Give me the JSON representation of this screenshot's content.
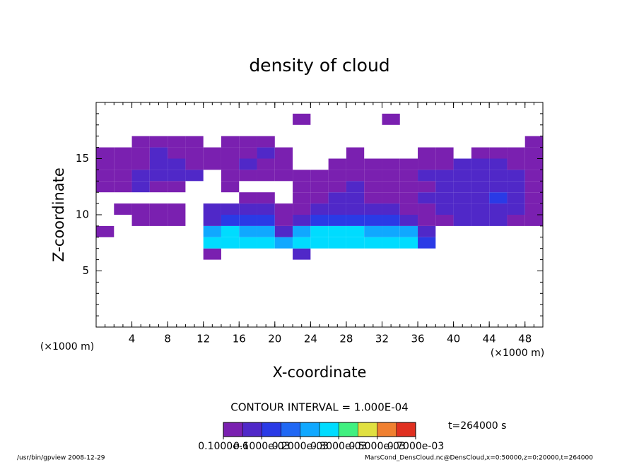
{
  "chart_data": {
    "type": "contour",
    "title": "density of cloud",
    "xlabel": "X-coordinate",
    "ylabel": "Z-coordinate",
    "x_unit_left": "(×1000 m)",
    "x_unit_right": "(×1000 m)",
    "contour_interval": "CONTOUR INTERVAL = 1.000E-04",
    "time_label": "t=264000 s",
    "footer_left": "/usr/bin/gpview  2008-12-29",
    "footer_right": "MarsCond_DensCloud.nc@DensCloud,x=0:50000,z=0:20000,t=264000",
    "xlim": [
      0,
      50
    ],
    "ylim": [
      0,
      20
    ],
    "xticks": [
      4,
      8,
      12,
      16,
      20,
      24,
      28,
      32,
      36,
      40,
      44,
      48
    ],
    "yticks": [
      5,
      10,
      15
    ],
    "minor_step": 1,
    "cell_width": 2,
    "cell_height": 1,
    "x": [
      1,
      3,
      5,
      7,
      9,
      11,
      13,
      15,
      17,
      19,
      21,
      23,
      25,
      27,
      29,
      31,
      33,
      35,
      37,
      39,
      41,
      43,
      45,
      47,
      49
    ],
    "z": [
      6.5,
      7.5,
      8.5,
      9.5,
      10.5,
      11.5,
      12.5,
      13.5,
      14.5,
      15.5,
      16.5,
      17.5,
      18.5
    ],
    "values": [
      [
        null,
        null,
        null,
        null,
        null,
        null,
        2e-05,
        null,
        null,
        null,
        null,
        7e-05,
        null,
        null,
        null,
        null,
        null,
        null,
        null,
        null,
        null,
        null,
        null,
        null,
        null
      ],
      [
        null,
        null,
        null,
        null,
        null,
        null,
        0.00028,
        0.00028,
        0.00028,
        0.00028,
        0.00022,
        0.00028,
        0.00028,
        0.00028,
        0.00028,
        0.00028,
        0.00028,
        0.00028,
        0.00012,
        null,
        null,
        null,
        null,
        null,
        null
      ],
      [
        2e-05,
        null,
        null,
        null,
        null,
        null,
        0.00022,
        0.00028,
        0.00022,
        0.00022,
        7e-05,
        0.00022,
        0.00028,
        0.00028,
        0.00028,
        0.00022,
        0.00022,
        0.00022,
        7e-05,
        null,
        null,
        null,
        null,
        null,
        null
      ],
      [
        null,
        null,
        2e-05,
        2e-05,
        2e-05,
        null,
        7e-05,
        0.00012,
        0.00012,
        0.00012,
        2e-05,
        7e-05,
        0.00012,
        0.00012,
        0.00012,
        0.00012,
        0.00012,
        7e-05,
        2e-05,
        2e-05,
        7e-05,
        7e-05,
        7e-05,
        2e-05,
        2e-05
      ],
      [
        null,
        2e-05,
        2e-05,
        2e-05,
        2e-05,
        null,
        7e-05,
        7e-05,
        7e-05,
        7e-05,
        2e-05,
        2e-05,
        7e-05,
        7e-05,
        7e-05,
        7e-05,
        7e-05,
        2e-05,
        2e-05,
        7e-05,
        7e-05,
        7e-05,
        7e-05,
        7e-05,
        2e-05
      ],
      [
        null,
        null,
        null,
        null,
        null,
        null,
        null,
        null,
        2e-05,
        2e-05,
        null,
        2e-05,
        2e-05,
        7e-05,
        7e-05,
        2e-05,
        2e-05,
        2e-05,
        7e-05,
        7e-05,
        7e-05,
        7e-05,
        0.00012,
        7e-05,
        2e-05
      ],
      [
        2e-05,
        2e-05,
        7e-05,
        2e-05,
        2e-05,
        null,
        null,
        2e-05,
        null,
        null,
        null,
        2e-05,
        2e-05,
        2e-05,
        7e-05,
        2e-05,
        2e-05,
        2e-05,
        2e-05,
        7e-05,
        7e-05,
        7e-05,
        7e-05,
        7e-05,
        2e-05
      ],
      [
        2e-05,
        2e-05,
        7e-05,
        7e-05,
        7e-05,
        7e-05,
        null,
        2e-05,
        2e-05,
        2e-05,
        2e-05,
        2e-05,
        2e-05,
        2e-05,
        2e-05,
        2e-05,
        2e-05,
        2e-05,
        7e-05,
        7e-05,
        7e-05,
        7e-05,
        7e-05,
        7e-05,
        2e-05
      ],
      [
        2e-05,
        2e-05,
        2e-05,
        7e-05,
        7e-05,
        2e-05,
        2e-05,
        2e-05,
        7e-05,
        2e-05,
        2e-05,
        null,
        null,
        2e-05,
        2e-05,
        2e-05,
        2e-05,
        2e-05,
        2e-05,
        2e-05,
        7e-05,
        7e-05,
        7e-05,
        2e-05,
        2e-05
      ],
      [
        2e-05,
        2e-05,
        2e-05,
        7e-05,
        2e-05,
        2e-05,
        2e-05,
        2e-05,
        2e-05,
        7e-05,
        2e-05,
        null,
        null,
        null,
        2e-05,
        null,
        null,
        null,
        2e-05,
        2e-05,
        null,
        2e-05,
        2e-05,
        2e-05,
        2e-05
      ],
      [
        null,
        null,
        2e-05,
        2e-05,
        2e-05,
        2e-05,
        null,
        2e-05,
        2e-05,
        2e-05,
        null,
        null,
        null,
        null,
        null,
        null,
        null,
        null,
        null,
        null,
        null,
        null,
        null,
        null,
        2e-05
      ],
      [
        null,
        null,
        null,
        null,
        null,
        null,
        null,
        null,
        null,
        null,
        null,
        null,
        null,
        null,
        null,
        null,
        null,
        null,
        null,
        null,
        null,
        null,
        null,
        null,
        null
      ],
      [
        null,
        null,
        null,
        null,
        null,
        null,
        null,
        null,
        null,
        null,
        null,
        2e-05,
        null,
        null,
        null,
        null,
        2e-05,
        null,
        null,
        null,
        null,
        null,
        null,
        null,
        null
      ]
    ],
    "colorbar": {
      "levels": [
        1e-07,
        5e-05,
        0.0001,
        0.00015,
        0.0002,
        0.00025,
        0.0003,
        0.0004,
        0.0005,
        0.0006,
        0.0007
      ],
      "colors": [
        "#7a20b0",
        "#5028c8",
        "#2a3ae6",
        "#2068f4",
        "#10a8ff",
        "#00dcff",
        "#40f080",
        "#e0e040",
        "#f08030",
        "#e03020"
      ],
      "labels": [
        {
          "value": 1e-07,
          "label": "0.1000e-6"
        },
        {
          "value": 0.0001,
          "label": "0.1000e-03"
        },
        {
          "value": 0.0002,
          "label": "0.2000e-03"
        },
        {
          "value": 0.0003,
          "label": "0.3000e-03"
        },
        {
          "value": 0.0005,
          "label": "0.5000e-03"
        },
        {
          "value": 0.0007,
          "label": "0.7000e-03"
        }
      ]
    }
  }
}
